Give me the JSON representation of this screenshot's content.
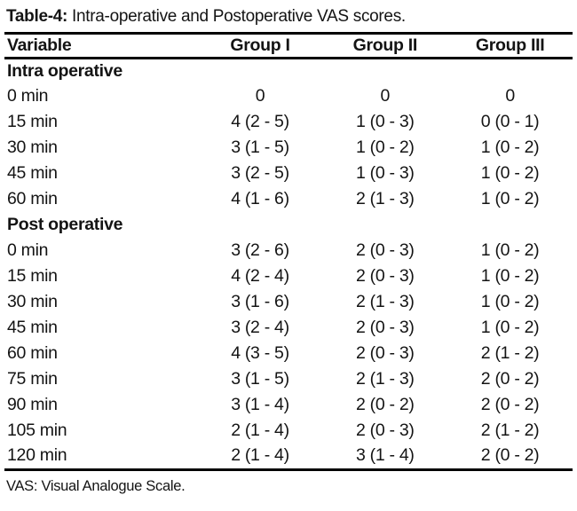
{
  "caption": {
    "label": "Table-4:",
    "text": " Intra-operative and Postoperative VAS scores."
  },
  "table": {
    "headers": [
      "Variable",
      "Group I",
      "Group II",
      "Group III"
    ],
    "sections": [
      {
        "name": "Intra operative",
        "rows": [
          {
            "label": "0 min",
            "values": [
              "0",
              "0",
              "0"
            ]
          },
          {
            "label": "15 min",
            "values": [
              "4 (2 - 5)",
              "1 (0 - 3)",
              "0 (0 - 1)"
            ]
          },
          {
            "label": "30 min",
            "values": [
              "3 (1 - 5)",
              "1 (0 - 2)",
              "1 (0 - 2)"
            ]
          },
          {
            "label": "45 min",
            "values": [
              "3 (2 - 5)",
              "1 (0 - 3)",
              "1 (0 - 2)"
            ]
          },
          {
            "label": "60 min",
            "values": [
              "4 (1 - 6)",
              "2 (1 - 3)",
              "1 (0 - 2)"
            ]
          }
        ]
      },
      {
        "name": "Post operative",
        "rows": [
          {
            "label": "0 min",
            "values": [
              "3 (2 - 6)",
              "2 (0 - 3)",
              "1 (0 - 2)"
            ]
          },
          {
            "label": "15 min",
            "values": [
              "4 (2 - 4)",
              "2 (0 - 3)",
              "1 (0 - 2)"
            ]
          },
          {
            "label": "30 min",
            "values": [
              "3 (1 - 6)",
              "2 (1 - 3)",
              "1 (0 - 2)"
            ]
          },
          {
            "label": "45 min",
            "values": [
              "3 (2 - 4)",
              "2 (0 - 3)",
              "1 (0 - 2)"
            ]
          },
          {
            "label": "60 min",
            "values": [
              "4 (3 - 5)",
              "2 (0 - 3)",
              "2 (1 - 2)"
            ]
          },
          {
            "label": "75 min",
            "values": [
              "3 (1 - 5)",
              "2 (1 - 3)",
              "2 (0 - 2)"
            ]
          },
          {
            "label": "90 min",
            "values": [
              "3 (1 - 4)",
              "2 (0 - 2)",
              "2 (0 - 2)"
            ]
          },
          {
            "label": "105 min",
            "values": [
              "2 (1 - 4)",
              "2 (0 - 3)",
              "2 (1 - 2)"
            ]
          },
          {
            "label": "120 min",
            "values": [
              "2 (1 - 4)",
              "3 (1 - 4)",
              "2 (0 - 2)"
            ]
          }
        ]
      }
    ]
  },
  "footnote": "VAS: Visual Analogue Scale.",
  "colors": {
    "text": "#141414",
    "rule": "#000000",
    "background": "#ffffff"
  }
}
